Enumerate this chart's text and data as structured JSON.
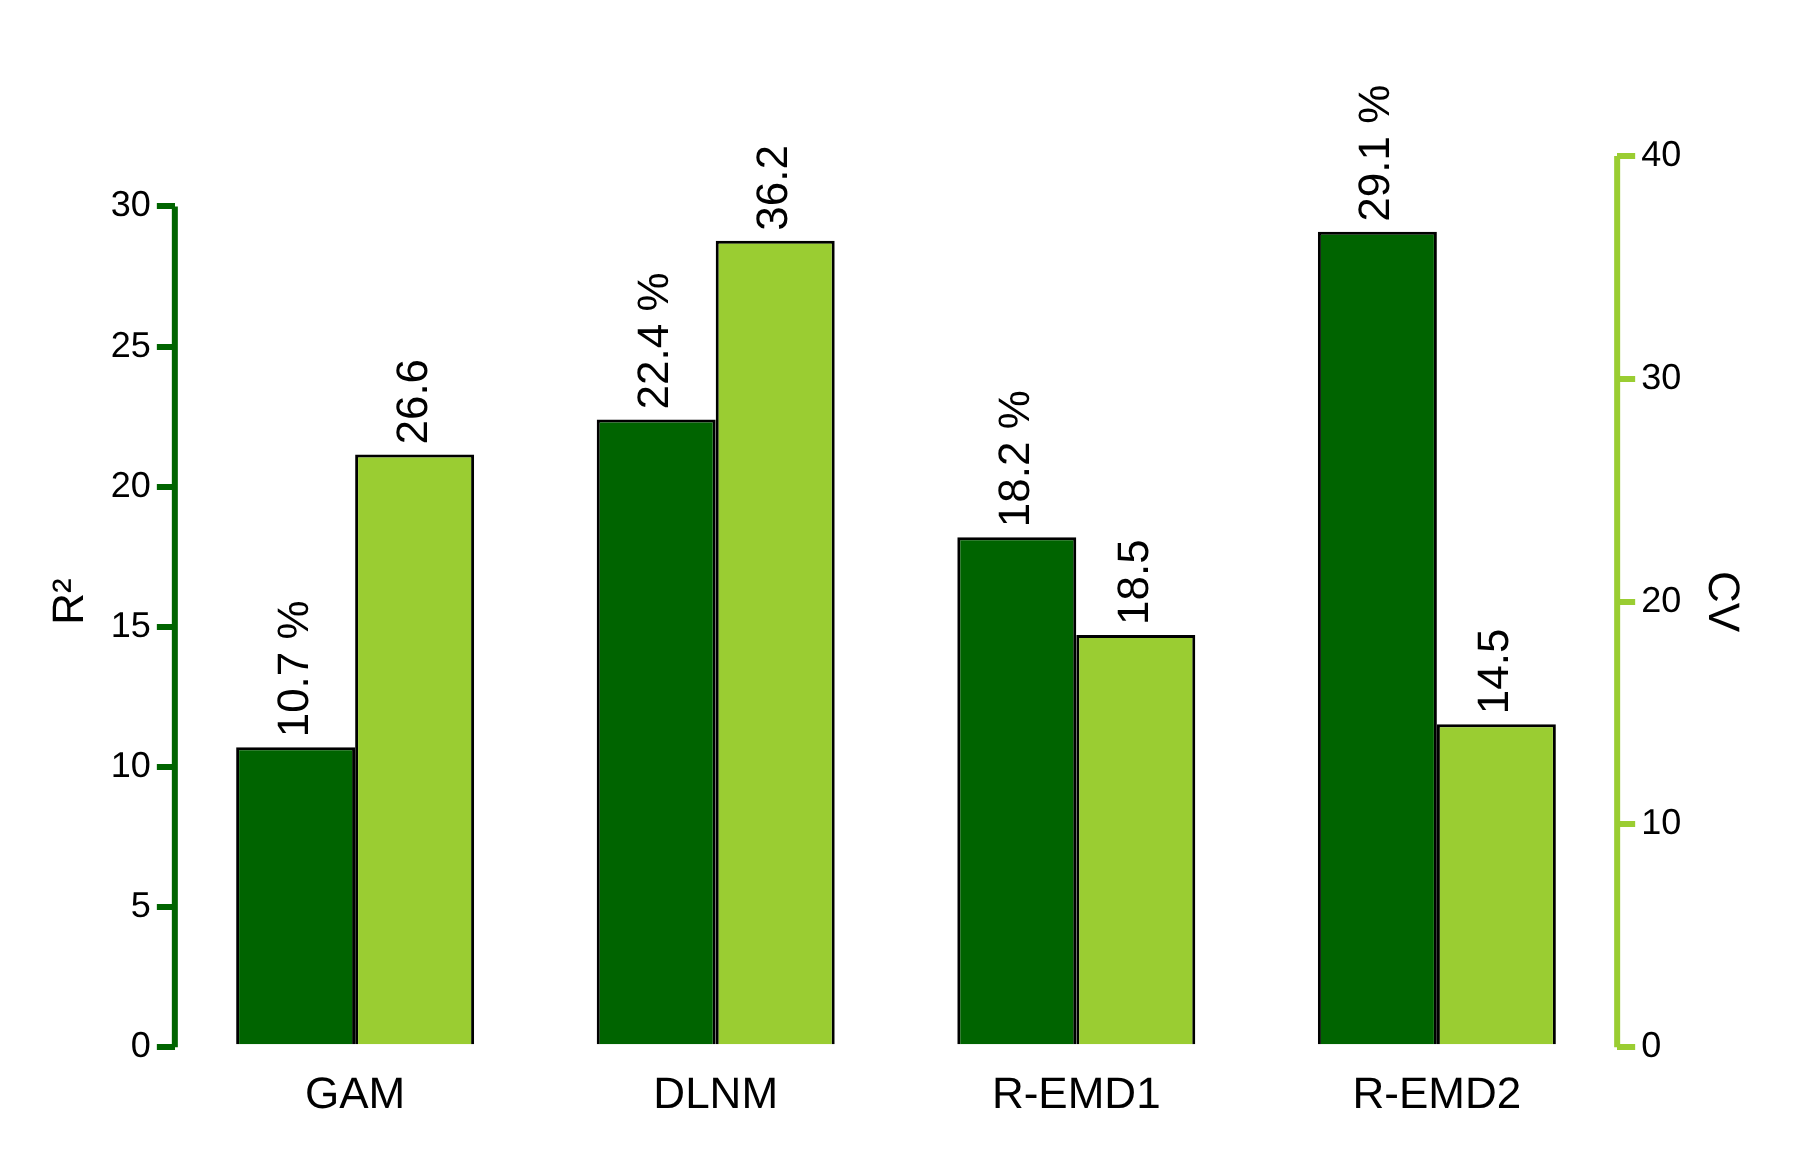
{
  "chart_data": {
    "type": "bar",
    "ylabel": "R²",
    "y2label": "CV",
    "categories": [
      "GAM",
      "DLNM",
      "R-EMD1",
      "R-EMD2"
    ],
    "series": [
      {
        "color": "#006400",
        "values": [
          10.7,
          22.4,
          18.2,
          29.1
        ],
        "value_labels": [
          "10.7 %",
          "22.4 %",
          "18.2 %",
          "29.1 %"
        ]
      },
      {
        "color": "#9acd32",
        "axis": "y2",
        "values": [
          26.6,
          36.2,
          18.5,
          14.5
        ],
        "value_labels": [
          "26.6",
          "36.2",
          "18.5",
          "14.5"
        ]
      }
    ],
    "ylim": [
      0,
      31.8
    ],
    "yticks": [
      0,
      5,
      10,
      15,
      20,
      25,
      30
    ],
    "y2lim": [
      0,
      40
    ],
    "y2ticks": [
      0,
      10,
      20,
      30,
      40
    ],
    "grid": false,
    "legend": false
  }
}
